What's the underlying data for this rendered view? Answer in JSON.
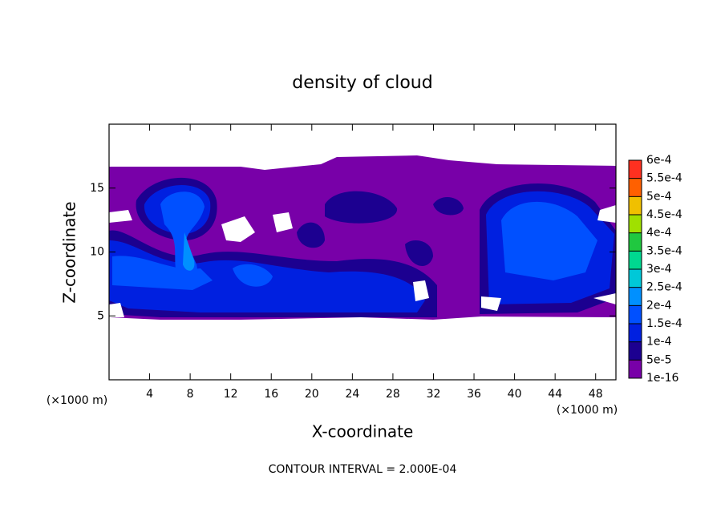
{
  "chart_data": {
    "type": "contour",
    "title": "density of cloud",
    "x_label": "X-coordinate",
    "y_label": "Z-coordinate",
    "x_unit_label": "(×1000 m)",
    "y_unit_label": "(×1000 m)",
    "footer": "CONTOUR INTERVAL = 2.000E-04",
    "xlim": [
      0,
      50
    ],
    "xticks": [
      4,
      8,
      12,
      16,
      20,
      24,
      28,
      32,
      36,
      40,
      44,
      48
    ],
    "ylim": [
      0,
      20
    ],
    "yticks": [
      5,
      10,
      15
    ],
    "colorbar_ticks": [
      {
        "value": 1e-16,
        "label": "1e-16"
      },
      {
        "value": 5e-05,
        "label": "5e-5"
      },
      {
        "value": 0.0001,
        "label": "1e-4"
      },
      {
        "value": 0.00015,
        "label": "1.5e-4"
      },
      {
        "value": 0.0002,
        "label": "2e-4"
      },
      {
        "value": 0.00025,
        "label": "2.5e-4"
      },
      {
        "value": 0.0003,
        "label": "3e-4"
      },
      {
        "value": 0.00035,
        "label": "3.5e-4"
      },
      {
        "value": 0.0004,
        "label": "4e-4"
      },
      {
        "value": 0.00045,
        "label": "4.5e-4"
      },
      {
        "value": 0.0005,
        "label": "5e-4"
      },
      {
        "value": 0.00055,
        "label": "5.5e-4"
      },
      {
        "value": 0.0006,
        "label": "6e-4"
      }
    ],
    "level_colors": [
      "#7800a8",
      "#1c0090",
      "#0020e0",
      "#0050ff",
      "#0090ff",
      "#00c8d8",
      "#00d890",
      "#20c840",
      "#a0e000",
      "#f0c000",
      "#ff6000",
      "#ff3020"
    ]
  }
}
